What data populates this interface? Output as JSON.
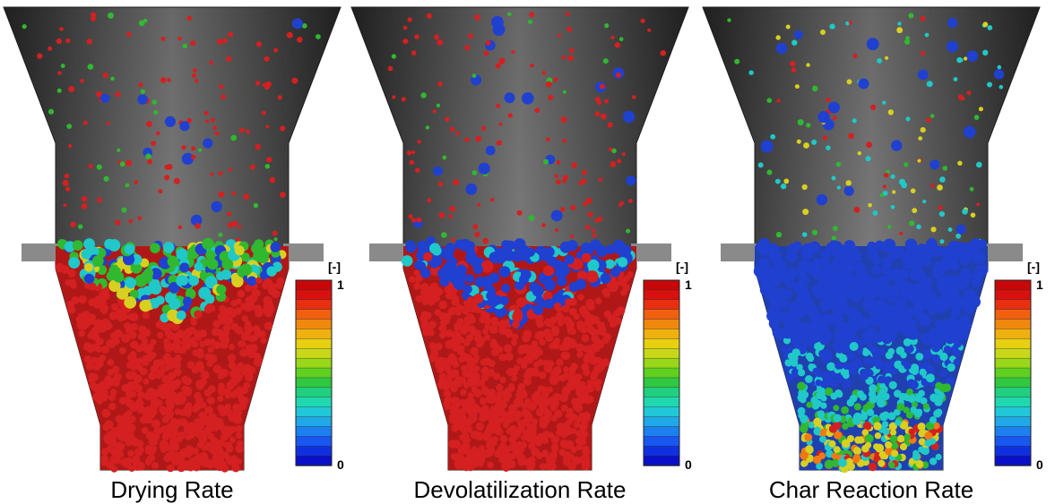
{
  "panels": [
    {
      "caption": "Drying Rate",
      "colorbar": {
        "unit": "[-]",
        "max": 1,
        "min": 0
      }
    },
    {
      "caption": "Devolatilization Rate",
      "colorbar": {
        "unit": "[-]",
        "max": 1,
        "min": 0
      }
    },
    {
      "caption": "Char Reaction Rate",
      "colorbar": {
        "unit": "[-]",
        "max": 1,
        "min": 0
      }
    }
  ]
}
